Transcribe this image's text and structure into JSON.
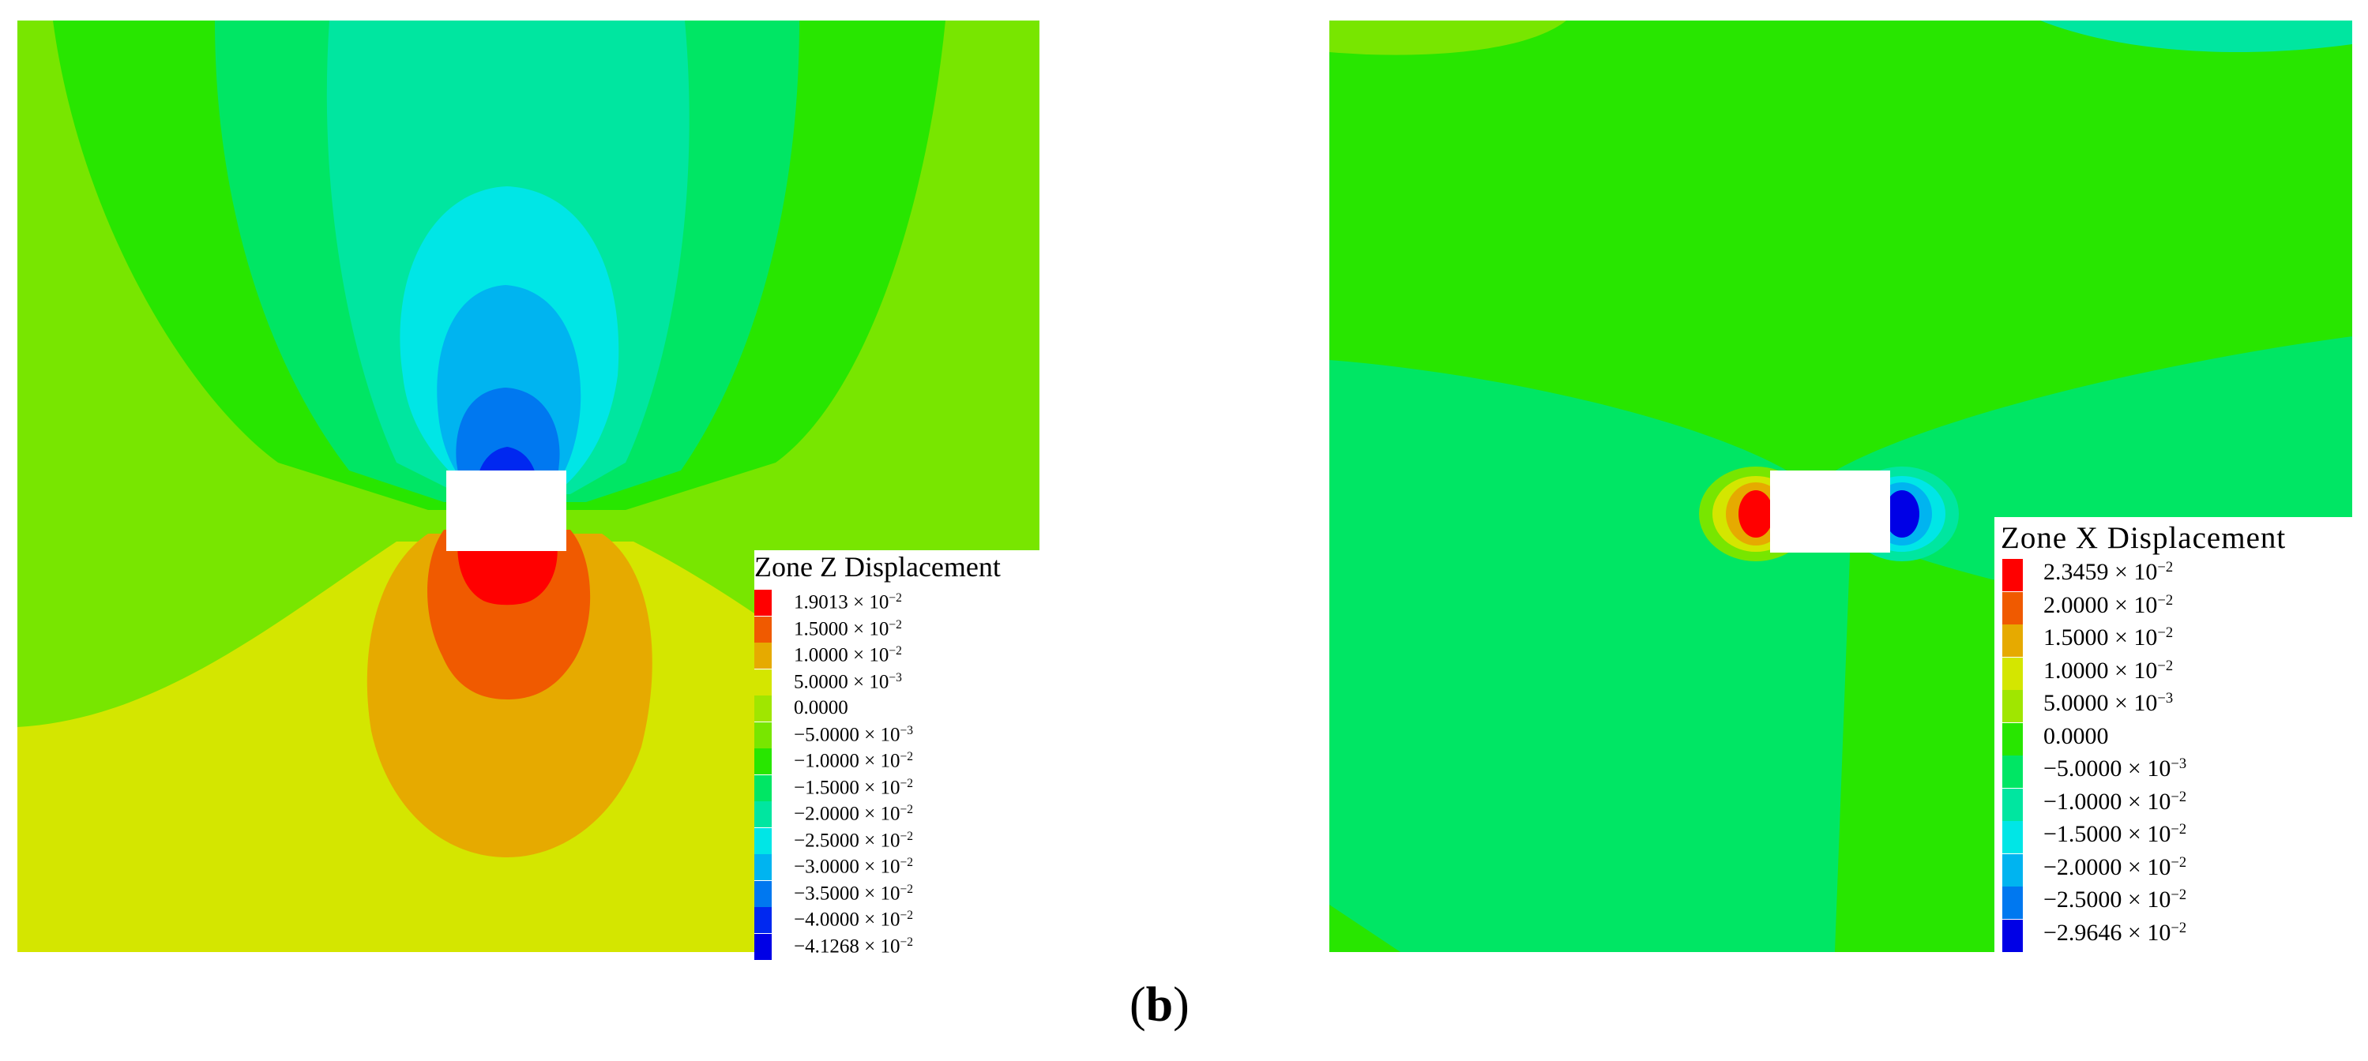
{
  "colors": {
    "red": "#ff0000",
    "orange_red": "#f05a00",
    "orange": "#e6aa00",
    "yellow": "#d4e600",
    "yellow_green": "#a0e600",
    "light_green": "#78e600",
    "green": "#28e600",
    "spring_green": "#00e664",
    "aquamarine": "#00e6a0",
    "cyan": "#00e6e6",
    "sky": "#00b4f0",
    "blue": "#0078f0",
    "deep_blue": "#0028f0",
    "white": "#ffffff"
  },
  "left_plot": {
    "legend_title": "Zone Z  Displacement",
    "legend": [
      {
        "label": "1.9013 × 10",
        "exp": "−2",
        "color": "#ff0000"
      },
      {
        "label": "1.5000 × 10",
        "exp": "−2",
        "color": "#f05a00"
      },
      {
        "label": "1.0000 × 10",
        "exp": "−2",
        "color": "#e6aa00"
      },
      {
        "label": "5.0000 × 10",
        "exp": "−3",
        "color": "#d4e600"
      },
      {
        "label": "0.0000",
        "exp": "",
        "color": "#a0e600"
      },
      {
        "label": "−5.0000 × 10",
        "exp": "−3",
        "color": "#78e600"
      },
      {
        "label": "−1.0000 × 10",
        "exp": "−2",
        "color": "#28e600"
      },
      {
        "label": "−1.5000 × 10",
        "exp": "−2",
        "color": "#00e664"
      },
      {
        "label": "−2.0000 × 10",
        "exp": "−2",
        "color": "#00e6a0"
      },
      {
        "label": "−2.5000 × 10",
        "exp": "−2",
        "color": "#00e6e6"
      },
      {
        "label": "−3.0000 × 10",
        "exp": "−2",
        "color": "#00b4f0"
      },
      {
        "label": "−3.5000 × 10",
        "exp": "−2",
        "color": "#0078f0"
      },
      {
        "label": "−4.0000 × 10",
        "exp": "−2",
        "color": "#0028f0"
      },
      {
        "label": "−4.1268 × 10",
        "exp": "−2",
        "color": "#0000e6"
      }
    ]
  },
  "right_plot": {
    "legend_title": "Zone  X   Displacement",
    "legend": [
      {
        "label": "2.3459 × 10",
        "exp": "−2",
        "color": "#ff0000"
      },
      {
        "label": "2.0000 × 10",
        "exp": "−2",
        "color": "#f05a00"
      },
      {
        "label": "1.5000 × 10",
        "exp": "−2",
        "color": "#e6aa00"
      },
      {
        "label": "1.0000 × 10",
        "exp": "−2",
        "color": "#d4e600"
      },
      {
        "label": "5.0000 × 10",
        "exp": "−3",
        "color": "#a0e600"
      },
      {
        "label": "0.0000",
        "exp": "",
        "color": "#28e600"
      },
      {
        "label": "−5.0000 × 10",
        "exp": "−3",
        "color": "#00e664"
      },
      {
        "label": "−1.0000 × 10",
        "exp": "−2",
        "color": "#00e6a0"
      },
      {
        "label": "−1.5000 × 10",
        "exp": "−2",
        "color": "#00e6e6"
      },
      {
        "label": "−2.0000 × 10",
        "exp": "−2",
        "color": "#00b4f0"
      },
      {
        "label": "−2.5000 × 10",
        "exp": "−2",
        "color": "#0078f0"
      },
      {
        "label": "−2.9646 × 10",
        "exp": "−2",
        "color": "#0000e6"
      }
    ]
  },
  "caption": {
    "open": "(",
    "letter": "b",
    "close": ")"
  }
}
